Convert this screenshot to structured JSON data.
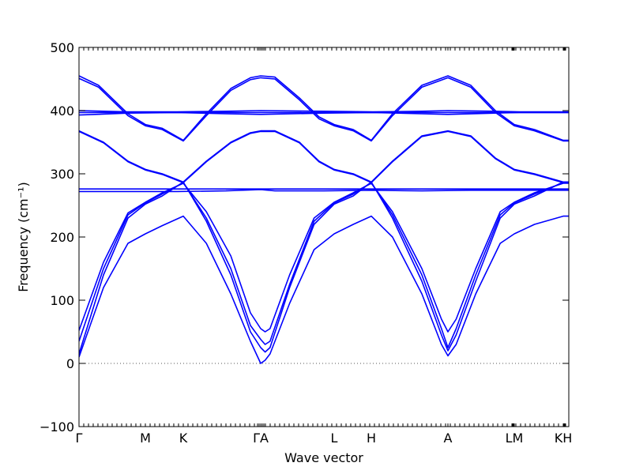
{
  "chart_data": {
    "type": "line",
    "xlabel": "Wave vector",
    "ylabel": "Frequency (cm⁻¹)",
    "ylim": [
      -100,
      500
    ],
    "yticks": [
      -100,
      0,
      100,
      200,
      300,
      400,
      500
    ],
    "grid": false,
    "zero_line": {
      "y": 0,
      "style": "dotted",
      "color": "#555555"
    },
    "line_color": "#0000ff",
    "xlim": [
      0,
      1
    ],
    "high_symmetry_points": [
      {
        "label": "Γ",
        "x": 0.0
      },
      {
        "label": "M",
        "x": 0.1355
      },
      {
        "label": "K",
        "x": 0.2129
      },
      {
        "label": "ΓA",
        "x": 0.371
      },
      {
        "label": "L",
        "x": 0.521
      },
      {
        "label": "H",
        "x": 0.5968
      },
      {
        "label": "A",
        "x": 0.7532
      },
      {
        "label": "LM",
        "x": 0.8887
      },
      {
        "label": "KH",
        "x": 0.9887
      }
    ],
    "minor_tick_x": [
      0.0,
      0.0097,
      0.0194,
      0.029,
      0.0387,
      0.0484,
      0.0581,
      0.0677,
      0.0774,
      0.0871,
      0.0968,
      0.1065,
      0.1161,
      0.1258,
      0.1355,
      0.1452,
      0.1548,
      0.1645,
      0.1742,
      0.1839,
      0.1935,
      0.2032,
      0.2129,
      0.2226,
      0.2323,
      0.2419,
      0.2516,
      0.2613,
      0.271,
      0.2806,
      0.2903,
      0.3,
      0.3097,
      0.3194,
      0.329,
      0.3387,
      0.3484,
      0.3581,
      0.3645,
      0.3677,
      0.371,
      0.3742,
      0.3774,
      0.3806,
      0.3903,
      0.4,
      0.4097,
      0.4194,
      0.429,
      0.4387,
      0.4484,
      0.4581,
      0.4677,
      0.4774,
      0.4871,
      0.4968,
      0.5065,
      0.5161,
      0.5258,
      0.5355,
      0.5452,
      0.5548,
      0.5645,
      0.5742,
      0.5839,
      0.5935,
      0.6032,
      0.6129,
      0.6226,
      0.6323,
      0.6419,
      0.6516,
      0.6613,
      0.671,
      0.6806,
      0.6903,
      0.7,
      0.7097,
      0.7194,
      0.729,
      0.7387,
      0.7484,
      0.7532,
      0.7581,
      0.7677,
      0.7774,
      0.7871,
      0.7968,
      0.8065,
      0.8161,
      0.8258,
      0.8355,
      0.8452,
      0.8548,
      0.8645,
      0.8742,
      0.8839,
      0.8855,
      0.8871,
      0.8887,
      0.8919,
      0.9016,
      0.9113,
      0.921,
      0.9306,
      0.9403,
      0.95,
      0.9597,
      0.9694,
      0.979,
      0.9887,
      0.9903,
      0.9919,
      0.9935,
      1.0
    ],
    "series": [
      {
        "points": [
          [
            0.0,
            10
          ],
          [
            0.05,
            120
          ],
          [
            0.1,
            190
          ],
          [
            0.1355,
            205
          ],
          [
            0.17,
            218
          ],
          [
            0.2129,
            233
          ],
          [
            0.26,
            190
          ],
          [
            0.31,
            110
          ],
          [
            0.35,
            35
          ],
          [
            0.371,
            0
          ],
          [
            0.38,
            5
          ],
          [
            0.39,
            15
          ],
          [
            0.43,
            95
          ],
          [
            0.48,
            180
          ],
          [
            0.521,
            205
          ],
          [
            0.56,
            220
          ],
          [
            0.5968,
            233
          ],
          [
            0.64,
            200
          ],
          [
            0.7,
            110
          ],
          [
            0.74,
            30
          ],
          [
            0.7532,
            12
          ],
          [
            0.77,
            30
          ],
          [
            0.81,
            110
          ],
          [
            0.86,
            190
          ],
          [
            0.8887,
            205
          ],
          [
            0.93,
            220
          ],
          [
            0.9887,
            233
          ],
          [
            1.0,
            233
          ]
        ]
      },
      {
        "points": [
          [
            0.0,
            15
          ],
          [
            0.05,
            140
          ],
          [
            0.1,
            230
          ],
          [
            0.1355,
            252
          ],
          [
            0.17,
            265
          ],
          [
            0.2129,
            287
          ],
          [
            0.26,
            225
          ],
          [
            0.31,
            140
          ],
          [
            0.35,
            50
          ],
          [
            0.371,
            25
          ],
          [
            0.38,
            18
          ],
          [
            0.39,
            25
          ],
          [
            0.43,
            120
          ],
          [
            0.48,
            220
          ],
          [
            0.521,
            252
          ],
          [
            0.56,
            265
          ],
          [
            0.5968,
            287
          ],
          [
            0.64,
            230
          ],
          [
            0.7,
            130
          ],
          [
            0.74,
            45
          ],
          [
            0.7532,
            20
          ],
          [
            0.77,
            45
          ],
          [
            0.81,
            130
          ],
          [
            0.86,
            230
          ],
          [
            0.8887,
            252
          ],
          [
            0.93,
            265
          ],
          [
            0.9887,
            287
          ],
          [
            1.0,
            287
          ]
        ]
      },
      {
        "points": [
          [
            0.0,
            35
          ],
          [
            0.05,
            150
          ],
          [
            0.1,
            235
          ],
          [
            0.1355,
            254
          ],
          [
            0.17,
            268
          ],
          [
            0.2129,
            286
          ],
          [
            0.26,
            230
          ],
          [
            0.31,
            150
          ],
          [
            0.35,
            60
          ],
          [
            0.371,
            38
          ],
          [
            0.38,
            30
          ],
          [
            0.39,
            35
          ],
          [
            0.43,
            125
          ],
          [
            0.48,
            225
          ],
          [
            0.521,
            254
          ],
          [
            0.56,
            268
          ],
          [
            0.5968,
            286
          ],
          [
            0.64,
            235
          ],
          [
            0.7,
            140
          ],
          [
            0.74,
            55
          ],
          [
            0.7532,
            25
          ],
          [
            0.77,
            55
          ],
          [
            0.81,
            140
          ],
          [
            0.86,
            235
          ],
          [
            0.8887,
            254
          ],
          [
            0.93,
            268
          ],
          [
            0.9887,
            286
          ],
          [
            1.0,
            286
          ]
        ]
      },
      {
        "points": [
          [
            0.0,
            52
          ],
          [
            0.05,
            160
          ],
          [
            0.1,
            238
          ],
          [
            0.1355,
            255
          ],
          [
            0.17,
            270
          ],
          [
            0.2129,
            285
          ],
          [
            0.26,
            240
          ],
          [
            0.31,
            170
          ],
          [
            0.35,
            80
          ],
          [
            0.371,
            55
          ],
          [
            0.38,
            50
          ],
          [
            0.39,
            55
          ],
          [
            0.43,
            140
          ],
          [
            0.48,
            230
          ],
          [
            0.521,
            255
          ],
          [
            0.56,
            270
          ],
          [
            0.5968,
            285
          ],
          [
            0.64,
            240
          ],
          [
            0.7,
            150
          ],
          [
            0.74,
            70
          ],
          [
            0.7532,
            50
          ],
          [
            0.77,
            70
          ],
          [
            0.81,
            150
          ],
          [
            0.86,
            240
          ],
          [
            0.8887,
            255
          ],
          [
            0.93,
            270
          ],
          [
            0.9887,
            285
          ],
          [
            1.0,
            285
          ]
        ]
      },
      {
        "points": [
          [
            0.0,
            272
          ],
          [
            0.1,
            272
          ],
          [
            0.2,
            272
          ],
          [
            0.3,
            273
          ],
          [
            0.371,
            275
          ],
          [
            0.4,
            273
          ],
          [
            0.5,
            273
          ],
          [
            0.6,
            274
          ],
          [
            0.7,
            273
          ],
          [
            0.8,
            274
          ],
          [
            0.9,
            274
          ],
          [
            1.0,
            274
          ]
        ]
      },
      {
        "points": [
          [
            0.0,
            276
          ],
          [
            0.1,
            276
          ],
          [
            0.2,
            276
          ],
          [
            0.3,
            276
          ],
          [
            0.371,
            276
          ],
          [
            0.4,
            276
          ],
          [
            0.5,
            276
          ],
          [
            0.6,
            276
          ],
          [
            0.7,
            276
          ],
          [
            0.8,
            276
          ],
          [
            0.9,
            276
          ],
          [
            1.0,
            276
          ]
        ]
      },
      {
        "points": [
          [
            0.0,
            368
          ],
          [
            0.05,
            350
          ],
          [
            0.1,
            320
          ],
          [
            0.1355,
            307
          ],
          [
            0.17,
            300
          ],
          [
            0.2129,
            287
          ],
          [
            0.26,
            320
          ],
          [
            0.31,
            350
          ],
          [
            0.35,
            365
          ],
          [
            0.371,
            368
          ],
          [
            0.4,
            368
          ],
          [
            0.45,
            350
          ],
          [
            0.49,
            320
          ],
          [
            0.521,
            307
          ],
          [
            0.56,
            300
          ],
          [
            0.5968,
            287
          ],
          [
            0.64,
            320
          ],
          [
            0.7,
            360
          ],
          [
            0.7532,
            368
          ],
          [
            0.8,
            360
          ],
          [
            0.85,
            325
          ],
          [
            0.8887,
            307
          ],
          [
            0.93,
            300
          ],
          [
            0.9887,
            287
          ],
          [
            1.0,
            287
          ]
        ]
      },
      {
        "points": [
          [
            0.0,
            367
          ],
          [
            0.05,
            349
          ],
          [
            0.1,
            319
          ],
          [
            0.1355,
            306
          ],
          [
            0.17,
            299
          ],
          [
            0.2129,
            286
          ],
          [
            0.26,
            319
          ],
          [
            0.31,
            349
          ],
          [
            0.35,
            364
          ],
          [
            0.371,
            367
          ],
          [
            0.4,
            367
          ],
          [
            0.45,
            349
          ],
          [
            0.49,
            319
          ],
          [
            0.521,
            306
          ],
          [
            0.56,
            299
          ],
          [
            0.5968,
            286
          ],
          [
            0.64,
            319
          ],
          [
            0.7,
            359
          ],
          [
            0.7532,
            367
          ],
          [
            0.8,
            359
          ],
          [
            0.85,
            324
          ],
          [
            0.8887,
            306
          ],
          [
            0.93,
            299
          ],
          [
            0.9887,
            286
          ],
          [
            1.0,
            286
          ]
        ]
      },
      {
        "points": [
          [
            0.0,
            455
          ],
          [
            0.04,
            440
          ],
          [
            0.1,
            395
          ],
          [
            0.1355,
            378
          ],
          [
            0.17,
            372
          ],
          [
            0.2129,
            353
          ],
          [
            0.26,
            395
          ],
          [
            0.31,
            435
          ],
          [
            0.35,
            452
          ],
          [
            0.371,
            455
          ],
          [
            0.4,
            453
          ],
          [
            0.45,
            420
          ],
          [
            0.49,
            390
          ],
          [
            0.521,
            378
          ],
          [
            0.56,
            370
          ],
          [
            0.5968,
            353
          ],
          [
            0.64,
            395
          ],
          [
            0.7,
            440
          ],
          [
            0.7532,
            455
          ],
          [
            0.8,
            440
          ],
          [
            0.85,
            400
          ],
          [
            0.8887,
            378
          ],
          [
            0.93,
            370
          ],
          [
            0.9887,
            353
          ],
          [
            1.0,
            353
          ]
        ]
      },
      {
        "points": [
          [
            0.0,
            451
          ],
          [
            0.04,
            437
          ],
          [
            0.1,
            392
          ],
          [
            0.1355,
            376
          ],
          [
            0.17,
            370
          ],
          [
            0.2129,
            352
          ],
          [
            0.26,
            392
          ],
          [
            0.31,
            432
          ],
          [
            0.35,
            449
          ],
          [
            0.371,
            452
          ],
          [
            0.4,
            450
          ],
          [
            0.45,
            417
          ],
          [
            0.49,
            387
          ],
          [
            0.521,
            376
          ],
          [
            0.56,
            368
          ],
          [
            0.5968,
            352
          ],
          [
            0.64,
            392
          ],
          [
            0.7,
            437
          ],
          [
            0.7532,
            452
          ],
          [
            0.8,
            437
          ],
          [
            0.85,
            397
          ],
          [
            0.8887,
            376
          ],
          [
            0.93,
            368
          ],
          [
            0.9887,
            352
          ],
          [
            1.0,
            352
          ]
        ]
      },
      {
        "points": [
          [
            0.0,
            400
          ],
          [
            0.1,
            398
          ],
          [
            0.2,
            398
          ],
          [
            0.3,
            399
          ],
          [
            0.371,
            400
          ],
          [
            0.5,
            399
          ],
          [
            0.6,
            398
          ],
          [
            0.7,
            399
          ],
          [
            0.7532,
            400
          ],
          [
            0.85,
            399
          ],
          [
            0.9,
            398
          ],
          [
            1.0,
            398
          ]
        ]
      },
      {
        "points": [
          [
            0.0,
            397
          ],
          [
            0.1,
            397
          ],
          [
            0.2,
            397
          ],
          [
            0.3,
            397
          ],
          [
            0.371,
            397
          ],
          [
            0.5,
            397
          ],
          [
            0.6,
            397
          ],
          [
            0.7,
            397
          ],
          [
            0.7532,
            397
          ],
          [
            0.85,
            397
          ],
          [
            0.9,
            397
          ],
          [
            1.0,
            397
          ]
        ]
      },
      {
        "points": [
          [
            0.0,
            393
          ],
          [
            0.1,
            396
          ],
          [
            0.2,
            397
          ],
          [
            0.3,
            395
          ],
          [
            0.371,
            394
          ],
          [
            0.5,
            396
          ],
          [
            0.6,
            397
          ],
          [
            0.7,
            395
          ],
          [
            0.7532,
            394
          ],
          [
            0.85,
            396
          ],
          [
            0.9,
            397
          ],
          [
            1.0,
            397
          ]
        ]
      }
    ]
  }
}
